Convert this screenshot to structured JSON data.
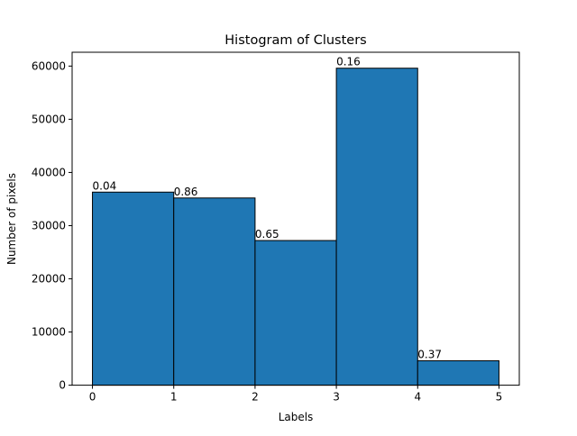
{
  "chart_data": {
    "type": "bar",
    "title": "Histogram of Clusters",
    "xlabel": "Labels",
    "ylabel": "Number of pixels",
    "bin_edges": [
      0,
      1,
      2,
      3,
      4,
      5
    ],
    "values": [
      36300,
      35200,
      27200,
      59600,
      4600
    ],
    "bar_labels": [
      "0.04",
      "0.86",
      "0.65",
      "0.16",
      "0.37"
    ],
    "xlim": [
      -0.25,
      5.25
    ],
    "ylim": [
      0,
      62600
    ],
    "xticks": [
      0,
      1,
      2,
      3,
      4,
      5
    ],
    "yticks": [
      0,
      10000,
      20000,
      30000,
      40000,
      50000,
      60000
    ],
    "grid": false,
    "legend": "none",
    "bar_color": "#1f77b4",
    "edge_color": "#000000"
  }
}
